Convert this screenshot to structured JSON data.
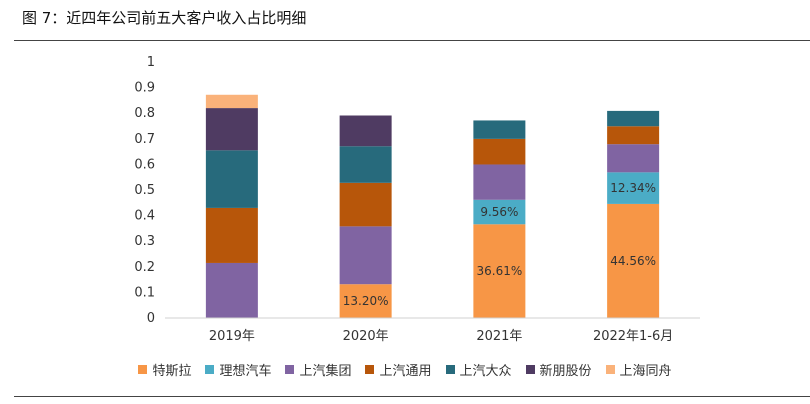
{
  "figure_title": "图 7：近四年公司前五大客户收入占比明细",
  "chart_data": {
    "type": "bar",
    "stacked": true,
    "categories": [
      "2019年",
      "2020年",
      "2021年",
      "2022年1-6月"
    ],
    "ylim": [
      0,
      1
    ],
    "yticks": [
      "0",
      "0.1",
      "0.2",
      "0.3",
      "0.4",
      "0.5",
      "0.6",
      "0.7",
      "0.8",
      "0.9",
      "1"
    ],
    "grid": false,
    "legend_position": "bottom",
    "series": [
      {
        "name": "特斯拉",
        "color": "#F79646",
        "values": [
          0,
          0.132,
          0.3661,
          0.4456
        ],
        "labels": [
          "",
          "13.20%",
          "36.61%",
          "44.56%"
        ]
      },
      {
        "name": "理想汽车",
        "color": "#4BACC6",
        "values": [
          0,
          0,
          0.0956,
          0.1234
        ],
        "labels": [
          "",
          "",
          "9.56%",
          "12.34%"
        ]
      },
      {
        "name": "上汽集团",
        "color": "#8064A2",
        "values": [
          0.215,
          0.226,
          0.138,
          0.11
        ],
        "labels": [
          "",
          "",
          "",
          ""
        ]
      },
      {
        "name": "上汽通用",
        "color": "#B7560A",
        "values": [
          0.215,
          0.17,
          0.1,
          0.07
        ],
        "labels": [
          "",
          "",
          "",
          ""
        ]
      },
      {
        "name": "上汽大众",
        "color": "#276A7C",
        "values": [
          0.225,
          0.143,
          0.072,
          0.06
        ],
        "labels": [
          "",
          "",
          "",
          ""
        ]
      },
      {
        "name": "新朋股份",
        "color": "#4F3B62",
        "values": [
          0.165,
          0.12,
          0,
          0
        ],
        "labels": [
          "",
          "",
          "",
          ""
        ]
      },
      {
        "name": "上海同舟",
        "color": "#FAB27A",
        "values": [
          0.052,
          0,
          0,
          0
        ],
        "labels": [
          "",
          "",
          "",
          ""
        ]
      }
    ]
  }
}
